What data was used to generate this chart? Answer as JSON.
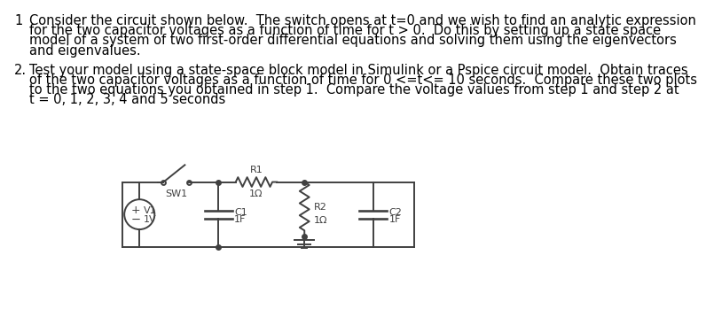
{
  "background_color": "#ffffff",
  "text1_number": "1",
  "text1_line1": "Consider the circuit shown below.  The switch opens at t=0 and we wish to find an analytic expression",
  "text1_line2": "for the two capacitor voltages as a function of time for t > 0.  Do this by setting up a state space",
  "text1_line3": "model of a system of two first-order differential equations and solving them using the eigenvectors",
  "text1_line4": "and eigenvalues.",
  "text2_number": "2.",
  "text2_line1": "Test your model using a state-space block model in Simulink or a Pspice circuit model.  Obtain traces",
  "text2_line2": "of the two capacitor voltages as a function of time for 0 <=t<= 10 seconds.  Compare these two plots",
  "text2_line3": "to the two equations you obtained in step 1.  Compare the voltage values from step 1 and step 2 at",
  "text2_line4": "t = 0, 1, 2, 3, 4 and 5 seconds",
  "font_size": 10.5,
  "circuit_color": "#404040",
  "lw": 1.4
}
